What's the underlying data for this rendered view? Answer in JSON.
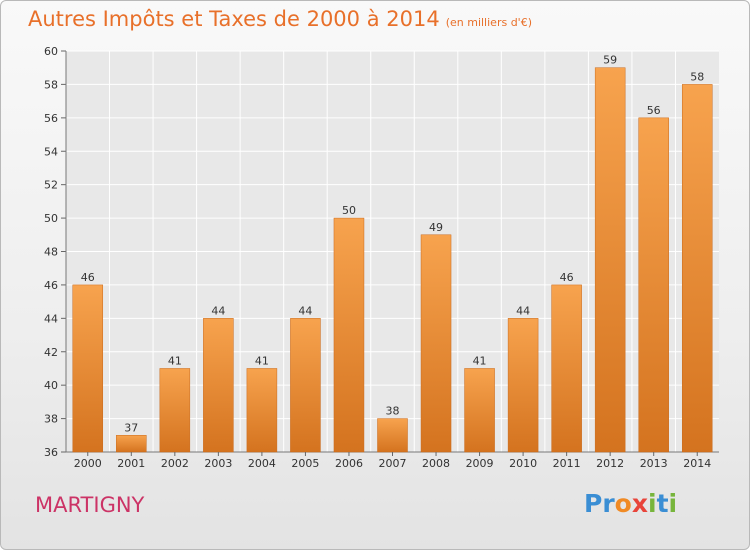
{
  "header": {
    "title": "Autres Impôts et Taxes de 2000 à 2014",
    "subtitle": "(en milliers d'€)"
  },
  "footer": {
    "location": "MARTIGNY"
  },
  "brand": {
    "letters": [
      {
        "ch": "P",
        "color": "#3a8ed4"
      },
      {
        "ch": "r",
        "color": "#3a8ed4"
      },
      {
        "ch": "o",
        "color": "#f08a24"
      },
      {
        "ch": "x",
        "color": "#e8443a"
      },
      {
        "ch": "i",
        "color": "#77b53c"
      },
      {
        "ch": "t",
        "color": "#3a8ed4"
      },
      {
        "ch": "i",
        "color": "#77b53c"
      }
    ]
  },
  "colors": {
    "title": "#e8702a",
    "bar_top": "#f7a34e",
    "bar_bottom": "#d4731f",
    "location": "#cc3366"
  },
  "chart_data": {
    "type": "bar",
    "title": "Autres Impôts et Taxes de 2000 à 2014",
    "subtitle": "(en milliers d'€)",
    "categories": [
      "2000",
      "2001",
      "2002",
      "2003",
      "2004",
      "2005",
      "2006",
      "2007",
      "2008",
      "2009",
      "2010",
      "2011",
      "2012",
      "2013",
      "2014"
    ],
    "values": [
      46,
      37,
      41,
      44,
      41,
      44,
      50,
      38,
      49,
      41,
      44,
      46,
      59,
      56,
      58
    ],
    "ylim": [
      36,
      60
    ],
    "yticks": [
      36,
      38,
      40,
      42,
      44,
      46,
      48,
      50,
      52,
      54,
      56,
      58,
      60
    ],
    "grid": true,
    "legend": "none",
    "data_labels": true
  }
}
